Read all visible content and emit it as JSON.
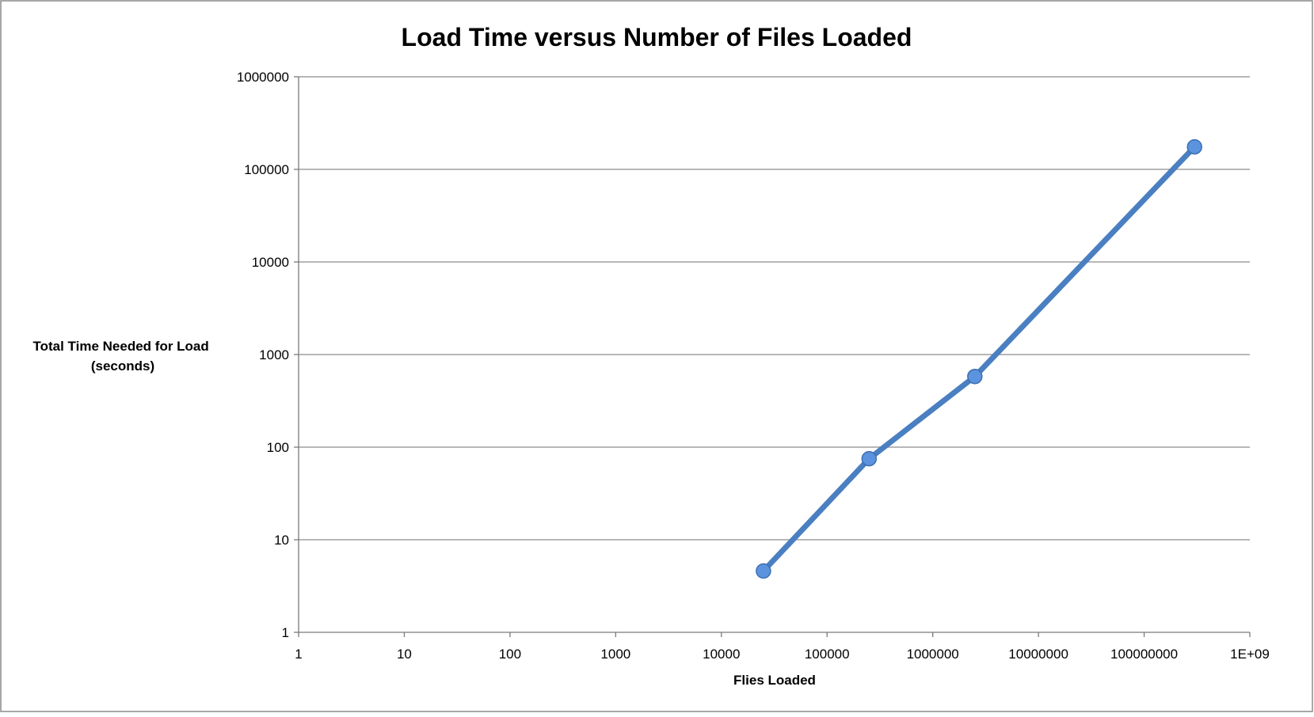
{
  "chart_data": {
    "type": "line",
    "title": "Load Time versus Number of Files Loaded",
    "xlabel": "Flies Loaded",
    "ylabel_lines": [
      "Total Time Needed for Load",
      "(seconds)"
    ],
    "x_scale": "log",
    "y_scale": "log",
    "xlim": [
      1,
      1000000000
    ],
    "ylim": [
      1,
      1000000
    ],
    "x_tick_labels": [
      "1",
      "10",
      "100",
      "1000",
      "10000",
      "100000",
      "1000000",
      "10000000",
      "100000000",
      "1E+09"
    ],
    "y_tick_labels": [
      "1",
      "10",
      "100",
      "1000",
      "10000",
      "100000",
      "1000000"
    ],
    "grid": "horizontal",
    "legend": "none",
    "series": [
      {
        "color": "#4a7fc1",
        "marker_color": "#5b93de",
        "x": [
          25000,
          250000,
          2500000,
          300000000
        ],
        "y": [
          4.6,
          75,
          580,
          175000
        ]
      }
    ]
  }
}
